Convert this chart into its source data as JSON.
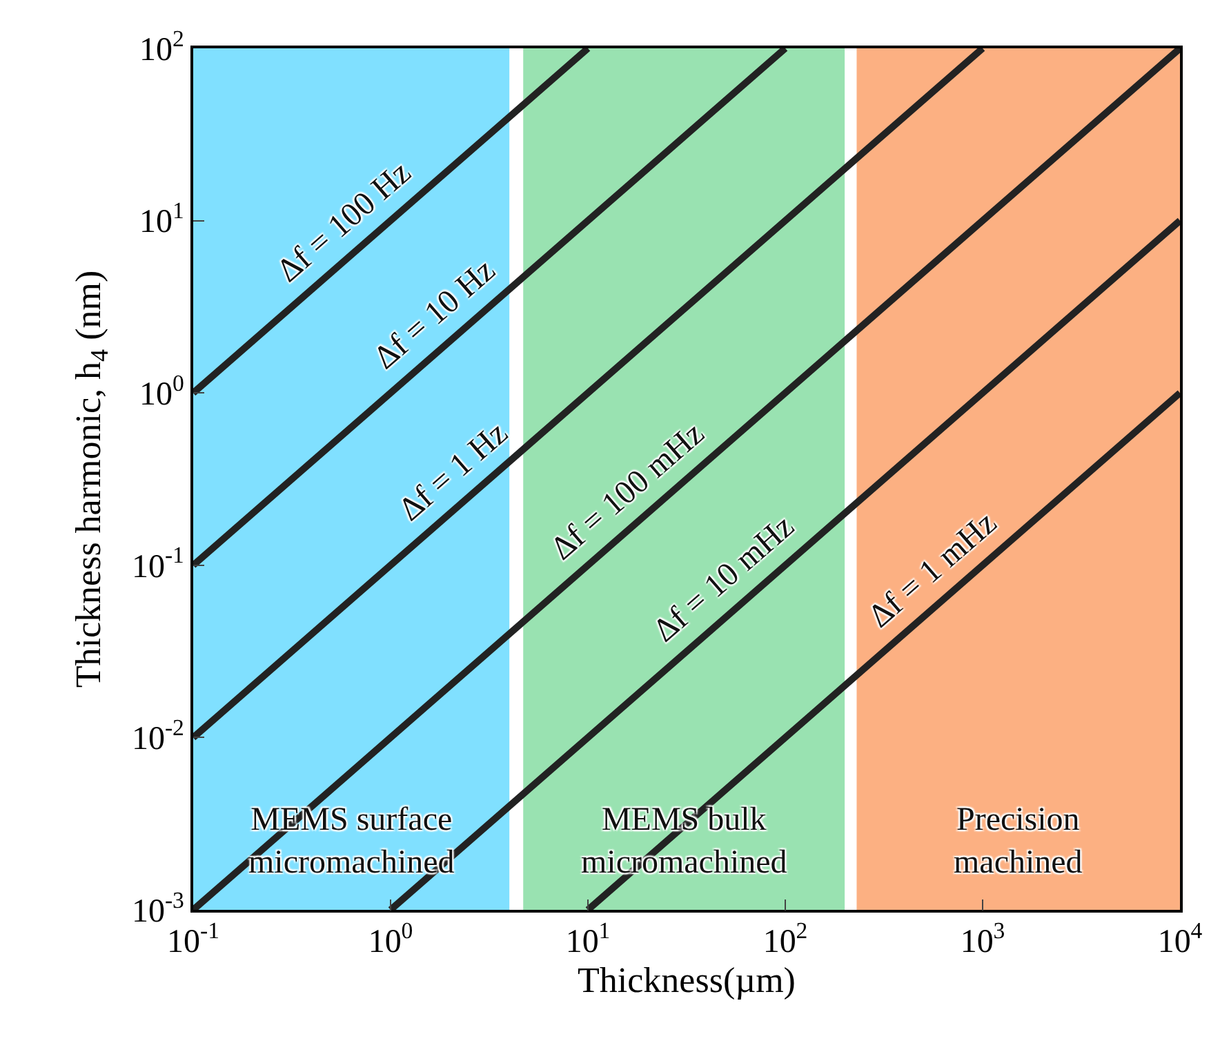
{
  "chart_data": {
    "type": "line",
    "xlabel": "Thickness(µm)",
    "ylabel": "Thickness harmonic, h$_{4}$ (nm)",
    "log": "xy",
    "grid": false,
    "marker": "none",
    "line_style": "solid",
    "xlim": [
      0.1,
      10000
    ],
    "ylim": [
      0.001,
      100
    ],
    "xticks": [
      {
        "value": 0.1,
        "label": "10$^{-1}$"
      },
      {
        "value": 1,
        "label": "10$^{0}$"
      },
      {
        "value": 10,
        "label": "10$^{1}$"
      },
      {
        "value": 100,
        "label": "10$^{2}$"
      },
      {
        "value": 1000,
        "label": "10$^{3}$"
      },
      {
        "value": 10000,
        "label": "10$^{4}$"
      }
    ],
    "yticks": [
      {
        "value": 0.001,
        "label": "10$^{-3}$"
      },
      {
        "value": 0.01,
        "label": "10$^{-2}$"
      },
      {
        "value": 0.1,
        "label": "10$^{-1}$"
      },
      {
        "value": 1,
        "label": "10$^{0}$"
      },
      {
        "value": 10,
        "label": "10$^{1}$"
      },
      {
        "value": 100,
        "label": "10$^{2}$"
      }
    ],
    "series": [
      {
        "color": "#222222",
        "x": [
          0.1,
          10
        ],
        "values": [
          1,
          100
        ]
      },
      {
        "color": "#222222",
        "x": [
          0.1,
          100
        ],
        "values": [
          0.1,
          100
        ]
      },
      {
        "color": "#222222",
        "x": [
          0.1,
          1000
        ],
        "values": [
          0.01,
          100
        ]
      },
      {
        "color": "#222222",
        "x": [
          0.1,
          10000
        ],
        "values": [
          0.001,
          100
        ]
      },
      {
        "color": "#222222",
        "x": [
          1,
          10000
        ],
        "values": [
          0.001,
          10
        ]
      },
      {
        "color": "#222222",
        "x": [
          10,
          10000
        ],
        "values": [
          0.001,
          1
        ]
      }
    ],
    "bands": [
      {
        "axis": "x",
        "from": 0.1,
        "to": 4,
        "label": "MEMS surface\nmicromachined",
        "color": "#80e0ff"
      },
      {
        "axis": "x",
        "from": 4.7,
        "to": 200,
        "label": "MEMS bulk\nmicromachined",
        "color": "#99e2b1"
      },
      {
        "axis": "x",
        "from": 230,
        "to": 10000,
        "label": "Precision\nmachined",
        "color": "#fcb082"
      }
    ],
    "annotations": [
      {
        "text": "Δf = 100 Hz",
        "x": 0.73,
        "y": 7.3
      },
      {
        "text": "Δf = 10 Hz",
        "x": 2.1,
        "y": 2.1
      },
      {
        "text": "Δf = 1 Hz",
        "x": 2.6,
        "y": 0.26
      },
      {
        "text": "Δf = 100 mHz",
        "x": 20,
        "y": 0.2
      },
      {
        "text": "Δf = 10 mHz",
        "x": 62,
        "y": 0.062
      },
      {
        "text": "Δf = 1 mHz",
        "x": 700,
        "y": 0.07
      }
    ]
  }
}
